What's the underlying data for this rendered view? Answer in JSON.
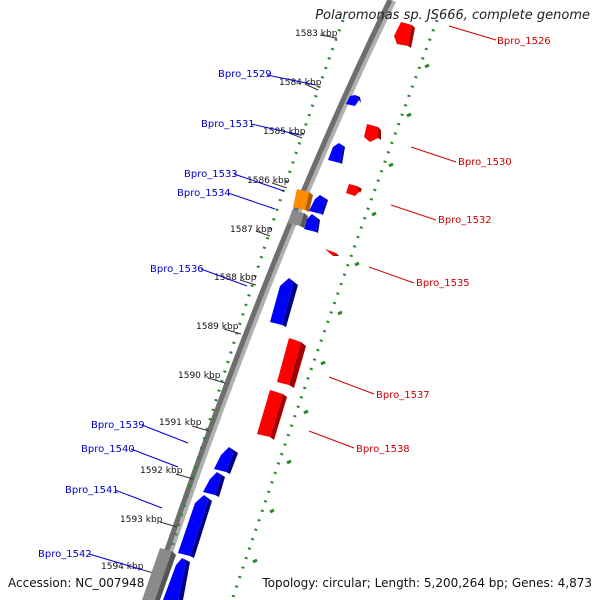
{
  "title": "Polaromonas sp. JS666, complete genome",
  "footer": {
    "accession": "Accession: NC_007948",
    "topology": "Topology: circular; Length: 5,200,264 bp; Genes: 4,873"
  },
  "colors": {
    "forward_gene": "#0000ff",
    "reverse_gene": "#ff0000",
    "orange_gene": "#ff8c00",
    "gray_gene": "#7a7a7a",
    "backbone": "#777777",
    "ruler": "#2a8a2a",
    "tick_label": "#111111"
  },
  "ticks": [
    {
      "label": "1583 kbp"
    },
    {
      "label": "1584 kbp"
    },
    {
      "label": "1585 kbp"
    },
    {
      "label": "1586 kbp"
    },
    {
      "label": "1587 kbp"
    },
    {
      "label": "1588 kbp"
    },
    {
      "label": "1589 kbp"
    },
    {
      "label": "1590 kbp"
    },
    {
      "label": "1591 kbp"
    },
    {
      "label": "1592 kbp"
    },
    {
      "label": "1593 kbp"
    },
    {
      "label": "1594 kbp"
    }
  ],
  "left_labels": [
    {
      "text": "Bpro_1529"
    },
    {
      "text": "Bpro_1531"
    },
    {
      "text": "Bpro_1533"
    },
    {
      "text": "Bpro_1534"
    },
    {
      "text": "Bpro_1536"
    },
    {
      "text": "Bpro_1539"
    },
    {
      "text": "Bpro_1540"
    },
    {
      "text": "Bpro_1541"
    },
    {
      "text": "Bpro_1542"
    }
  ],
  "right_labels": [
    {
      "text": "Bpro_1526"
    },
    {
      "text": "Bpro_1530"
    },
    {
      "text": "Bpro_1532"
    },
    {
      "text": "Bpro_1535"
    },
    {
      "text": "Bpro_1537"
    },
    {
      "text": "Bpro_1538"
    }
  ]
}
